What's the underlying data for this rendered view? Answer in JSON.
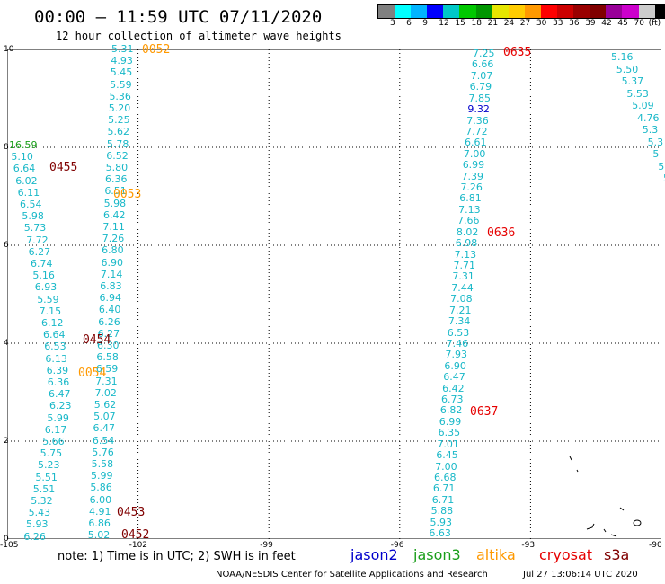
{
  "header": {
    "title": "00:00 – 11:59 UTC 07/11/2020",
    "subtitle": "12 hour collection of altimeter wave heights"
  },
  "colorbar": {
    "colors": [
      "#808080",
      "#00ffff",
      "#00b4ff",
      "#0000ff",
      "#00c8c8",
      "#00c800",
      "#009600",
      "#e6e600",
      "#ffcc00",
      "#ff9900",
      "#ff0000",
      "#cc0000",
      "#990000",
      "#800000",
      "#990099",
      "#cc00cc",
      "#cccccc",
      "#000000"
    ],
    "labels": [
      "3",
      "6",
      "9",
      "12",
      "15",
      "18",
      "21",
      "24",
      "27",
      "30",
      "33",
      "36",
      "39",
      "42",
      "45",
      "70",
      "(ft)"
    ]
  },
  "map": {
    "lon_range": [
      -105,
      -90
    ],
    "lat_range": [
      0,
      10
    ],
    "lon_ticks": [
      "-105",
      "-102",
      "-99",
      "-96",
      "-93",
      "-90"
    ],
    "lat_ticks": [
      "0",
      "2",
      "4",
      "6",
      "8",
      "10"
    ]
  },
  "tracks": {
    "t1": [
      "5.31",
      "4.93",
      "5.45",
      "5.59",
      "5.36",
      "5.20",
      "5.25",
      "5.62",
      "5.78",
      "6.52",
      "5.80",
      "6.36",
      "6.51",
      "5.98",
      "6.42",
      "7.11",
      "7.26",
      "6.80",
      "6.90",
      "7.14",
      "6.83",
      "6.94",
      "6.40",
      "6.26",
      "6.27",
      "6.30",
      "6.58",
      "6.59",
      "7.31",
      "7.02",
      "5.62",
      "5.07",
      "6.47",
      "6.54",
      "5.76",
      "5.58",
      "5.99",
      "5.86",
      "6.00",
      "4.91",
      "6.86",
      "5.02"
    ],
    "t2": [
      "16.59",
      "5.10",
      "6.64",
      "6.02",
      "6.11",
      "6.54",
      "5.98",
      "5.73",
      "7.72",
      "6.27",
      "6.74",
      "5.16",
      "6.93",
      "5.59",
      "7.15",
      "6.12",
      "6.64",
      "6.53",
      "6.13",
      "6.39",
      "6.36",
      "6.47",
      "6.23",
      "5.99",
      "6.17",
      "5.66",
      "5.75",
      "5.23",
      "5.51",
      "5.51",
      "5.32",
      "5.43",
      "5.93",
      "6.26"
    ],
    "t3": [
      "7.25",
      "6.66",
      "7.07",
      "6.79",
      "7.85",
      "9.32",
      "7.36",
      "7.72",
      "6.61",
      "7.00",
      "6.99",
      "7.39",
      "7.26",
      "6.81",
      "7.13",
      "7.66",
      "8.02",
      "6.98",
      "7.13",
      "7.71",
      "7.31",
      "7.44",
      "7.08",
      "7.21",
      "7.34",
      "6.53",
      "7.46",
      "7.93",
      "6.90",
      "6.47",
      "6.42",
      "6.73",
      "6.82",
      "6.99",
      "6.35",
      "7.01",
      "6.45",
      "7.00",
      "6.68",
      "6.71",
      "6.71",
      "5.88",
      "5.93",
      "6.63"
    ],
    "t4": [
      "5.16",
      "5.50",
      "5.37",
      "5.53",
      "5.09",
      "4.76",
      "5.3",
      "5.3",
      "5",
      "5",
      "5"
    ]
  },
  "passes": {
    "p0052": "0052",
    "p0053": "0053",
    "p0054": "0054",
    "p0455": "0455",
    "p0454": "0454",
    "p0453": "0453",
    "p0452": "0452",
    "p0635": "0635",
    "p0636": "0636",
    "p0637": "0637"
  },
  "colors": {
    "cyan": "#19b8c8",
    "blue": "#0000cc",
    "green": "#1a9e1a",
    "orange": "#ff9900",
    "red": "#e60000",
    "darkred": "#800000"
  },
  "footer": {
    "note": "note: 1) Time is in UTC; 2) SWH is in feet",
    "sat_jason2": "jason2",
    "sat_jason3": "jason3",
    "sat_altika": "altika",
    "sat_cryosat": "cryosat",
    "sat_s3a": "s3a",
    "credit": "NOAA/NESDIS Center for Satellite Applications and Research",
    "stamp": "Jul 27 13:06:14 UTC 2020"
  }
}
